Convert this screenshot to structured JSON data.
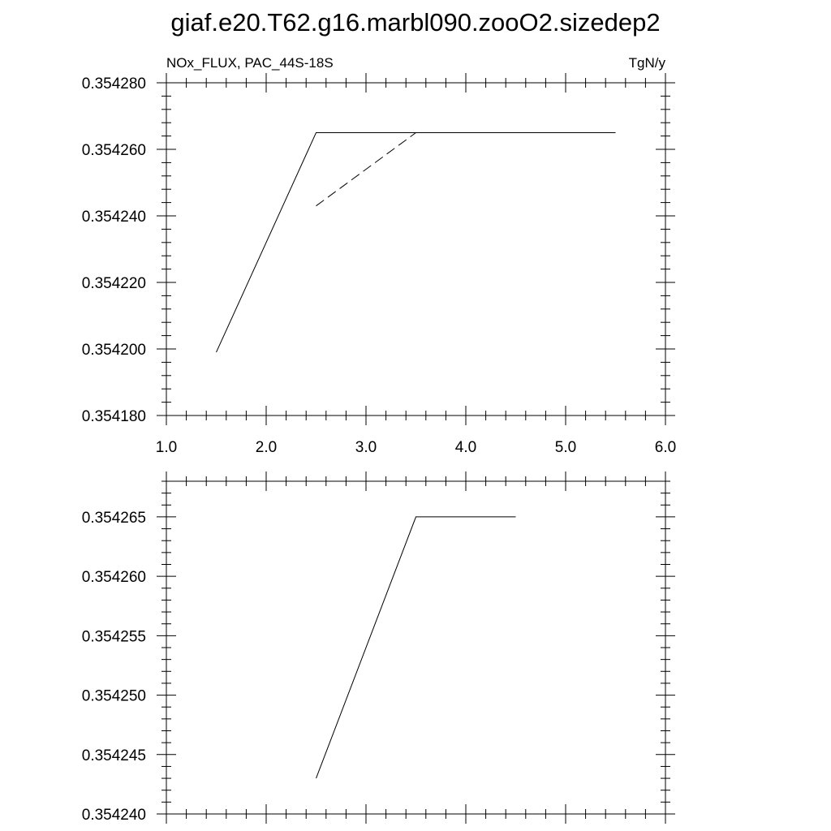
{
  "figure": {
    "title": "giaf.e20.T62.g16.marbl090.zooO2.sizedep2"
  },
  "chart_data": [
    {
      "type": "line",
      "left_label": "NOx_FLUX, PAC_44S-18S",
      "right_label": "TgN/y",
      "xlim": [
        1.0,
        6.0
      ],
      "ylim": [
        0.35418,
        0.35428
      ],
      "x_ticks": [
        1.0,
        2.0,
        3.0,
        4.0,
        5.0,
        6.0
      ],
      "x_tick_labels": [
        "1.0",
        "2.0",
        "3.0",
        "4.0",
        "5.0",
        "6.0"
      ],
      "y_ticks": [
        0.35418,
        0.3542,
        0.35422,
        0.35424,
        0.35426,
        0.35428
      ],
      "y_tick_labels": [
        "0.354180",
        "0.354200",
        "0.354220",
        "0.354240",
        "0.354260",
        "0.354280"
      ],
      "grid": false,
      "series": [
        {
          "style": "solid",
          "x": [
            1.5,
            2.5,
            3.5,
            4.5,
            5.5
          ],
          "y": [
            0.354199,
            0.354265,
            0.354265,
            0.354265,
            0.354265
          ]
        },
        {
          "style": "dashed",
          "x": [
            2.5,
            3.5,
            4.5
          ],
          "y": [
            0.354243,
            0.354265,
            0.354265
          ]
        }
      ]
    },
    {
      "type": "line",
      "xlim": [
        1.0,
        6.0
      ],
      "ylim": [
        0.35424,
        0.354268
      ],
      "x_ticks": [
        1.0,
        2.0,
        3.0,
        4.0,
        5.0,
        6.0
      ],
      "y_ticks": [
        0.35424,
        0.354245,
        0.35425,
        0.354255,
        0.35426,
        0.354265
      ],
      "y_tick_labels": [
        "0.354240",
        "0.354245",
        "0.354250",
        "0.354255",
        "0.354260",
        "0.354265"
      ],
      "grid": false,
      "series": [
        {
          "style": "solid",
          "x": [
            2.5,
            3.5,
            4.5
          ],
          "y": [
            0.354243,
            0.354265,
            0.354265
          ]
        }
      ]
    }
  ]
}
